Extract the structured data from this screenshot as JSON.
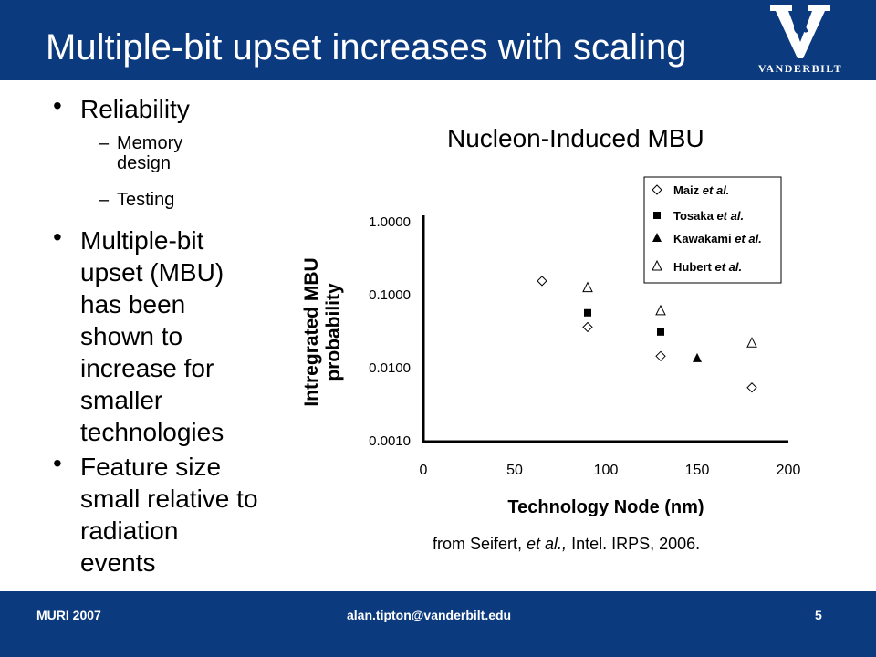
{
  "header": {
    "title": "Multiple-bit upset increases with scaling",
    "logo_text": "VANDERBILT",
    "bar_color": "#0b3a7e"
  },
  "bullets": [
    {
      "text": "Reliability",
      "sub": [
        "Memory design",
        "Testing"
      ]
    },
    {
      "text": "Multiple-bit upset (MBU) has been shown to increase for smaller technologies"
    },
    {
      "text": "Feature size small relative to radiation events"
    }
  ],
  "chart_title": "Nucleon-Induced MBU",
  "source": {
    "prefix": "from Seifert, ",
    "italic": "et al.,",
    "suffix": " Intel.  IRPS, 2006."
  },
  "footer": {
    "left": "MURI 2007",
    "center": "alan.tipton@vanderbilt.edu",
    "page": "5"
  },
  "chart_data": {
    "type": "scatter",
    "xlabel": "Technology Node (nm)",
    "ylabel": "Intregrated MBU probability",
    "xlim": [
      0,
      200
    ],
    "ylim": [
      0.001,
      1.0
    ],
    "yscale": "log",
    "xticks": [
      "0",
      "50",
      "100",
      "150",
      "200"
    ],
    "yticks": [
      "1.0000",
      "0.1000",
      "0.0100",
      "0.0010"
    ],
    "grid": false,
    "legend_position": "top-right",
    "series": [
      {
        "name": "Maiz et al.",
        "marker": "diamond-open",
        "points": [
          [
            65,
            0.15
          ],
          [
            90,
            0.035
          ],
          [
            130,
            0.014
          ],
          [
            180,
            0.0052
          ]
        ]
      },
      {
        "name": "Tosaka et al.",
        "marker": "square-filled",
        "points": [
          [
            90,
            0.055
          ],
          [
            130,
            0.03
          ]
        ]
      },
      {
        "name": "Kawakami et al.",
        "marker": "triangle-filled",
        "points": [
          [
            150,
            0.013
          ]
        ]
      },
      {
        "name": "Hubert et al.",
        "marker": "triangle-open",
        "points": [
          [
            90,
            0.12
          ],
          [
            130,
            0.058
          ],
          [
            180,
            0.021
          ]
        ]
      }
    ]
  }
}
